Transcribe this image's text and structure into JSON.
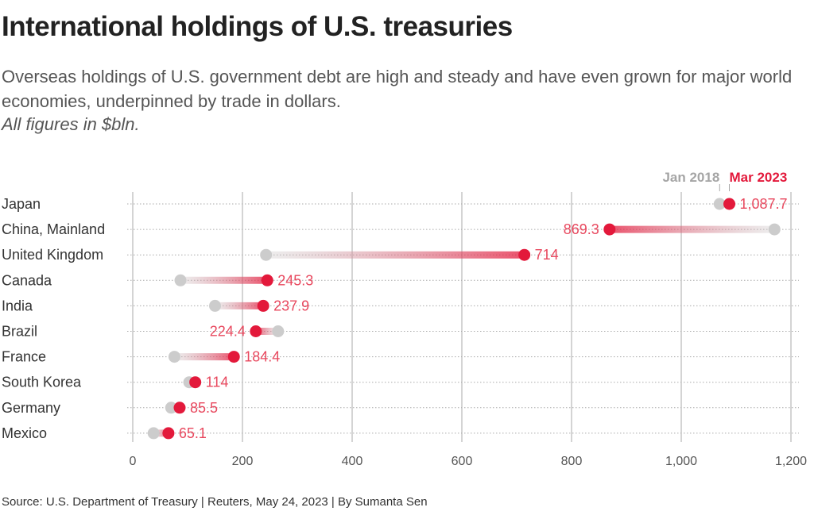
{
  "title": "International holdings of U.S. treasuries",
  "subtitle": "Overseas holdings of U.S. government debt are high and steady and have even grown for major world economies, underpinned by trade in dollars.",
  "units_note": "All figures in $bln.",
  "source": "Source: U.S. Department of Treasury | Reuters, May 24, 2023 | By Sumanta Sen",
  "colors": {
    "start": "#cccccc",
    "end": "#e3193b",
    "end_label": "#e8485e",
    "start_legend": "#a5a5a5",
    "axis_text": "#555555",
    "category_text": "#333333",
    "grid": "#aaaaaa"
  },
  "chart_data": {
    "type": "dumbbell",
    "title": "International holdings of U.S. treasuries",
    "categories": [
      "Japan",
      "China, Mainland",
      "United Kingdom",
      "Canada",
      "India",
      "Brazil",
      "France",
      "South Korea",
      "Germany",
      "Mexico"
    ],
    "series": [
      {
        "name": "Jan 2018",
        "values": [
          1070,
          1170,
          243,
          87,
          150,
          265,
          76,
          103,
          70,
          38
        ]
      },
      {
        "name": "Mar 2023",
        "values": [
          1087.7,
          869.3,
          714,
          245.3,
          237.9,
          224.4,
          184.4,
          114,
          85.5,
          65.1
        ]
      }
    ],
    "end_labels": [
      "1,087.7",
      "869.3",
      "714",
      "245.3",
      "237.9",
      "224.4",
      "184.4",
      "114",
      "85.5",
      "65.1"
    ],
    "x_ticks": [
      0,
      200,
      400,
      600,
      800,
      1000,
      1200
    ],
    "x_tick_labels": [
      "0",
      "200",
      "400",
      "600",
      "800",
      "1,000",
      "1,200"
    ],
    "xlim": [
      0,
      1200
    ],
    "xlabel": "",
    "ylabel": "",
    "legend": "top-right",
    "grid": true
  }
}
